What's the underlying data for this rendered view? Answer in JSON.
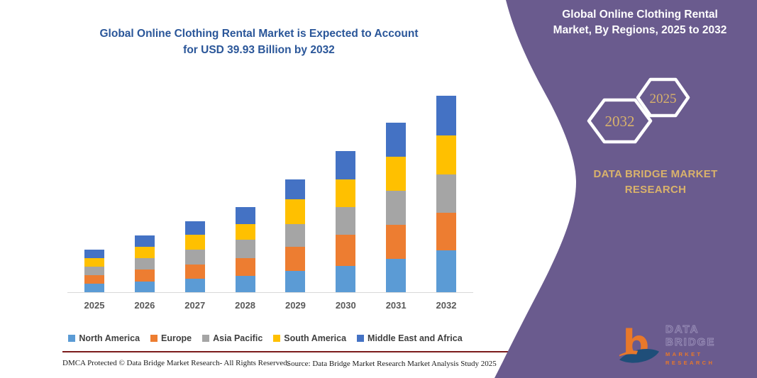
{
  "title": {
    "line1": "Global Online Clothing Rental Market is Expected to Account",
    "line2": "for USD 39.93 Billion by 2032"
  },
  "footer": {
    "dmca": "DMCA Protected © Data Bridge Market Research-  All Rights Reserved.",
    "source": "Source: Data Bridge Market Research  Market Analysis Study 2025"
  },
  "right_panel": {
    "heading_line1": "Global Online Clothing Rental",
    "heading_line2": "Market, By Regions, 2025 to 2032",
    "hexagon_back_label": "2032",
    "hexagon_front_label": "2025",
    "brand_line1": "DATA BRIDGE MARKET",
    "brand_line2": "RESEARCH",
    "logo_letter": "b",
    "logo_name": "DATA BRIDGE",
    "logo_sub": "MARKET RESEARCH"
  },
  "colors": {
    "purple": "#6A5B8E",
    "gold": "#D9B26B",
    "title_blue": "#2A5699",
    "axis_label_gray": "#595959",
    "red_rule": "#7B1B1B",
    "logo_orange": "#E8782A",
    "logo_blue": "#1F4E79"
  },
  "chart_data": {
    "type": "bar",
    "stacked": true,
    "title": "Global Online Clothing Rental Market is Expected to Account for USD 39.93 Billion by 2032",
    "unit": "USD Billion",
    "categories": [
      "2025",
      "2026",
      "2027",
      "2028",
      "2029",
      "2030",
      "2031",
      "2032"
    ],
    "series": [
      {
        "name": "North America",
        "color": "#5B9BD5",
        "values": [
          1.7,
          2.2,
          2.7,
          3.3,
          4.4,
          5.3,
          6.8,
          8.5
        ]
      },
      {
        "name": "Europe",
        "color": "#ED7D31",
        "values": [
          1.8,
          2.4,
          2.9,
          3.6,
          4.8,
          6.4,
          6.9,
          7.6
        ]
      },
      {
        "name": "Asia Pacific",
        "color": "#A5A5A5",
        "values": [
          1.7,
          2.3,
          3.1,
          3.7,
          4.6,
          5.6,
          6.9,
          7.9
        ]
      },
      {
        "name": "South America",
        "color": "#FFC000",
        "values": [
          1.7,
          2.3,
          3.0,
          3.2,
          5.1,
          5.6,
          6.9,
          7.9
        ]
      },
      {
        "name": "Middle East and Africa",
        "color": "#4472C4",
        "values": [
          1.7,
          2.3,
          2.7,
          3.45,
          4.0,
          5.7,
          6.9,
          8.03
        ]
      }
    ],
    "totals": [
      8.6,
      11.5,
      14.4,
      17.25,
      22.9,
      28.6,
      34.4,
      39.93
    ],
    "ylim": [
      0,
      40
    ],
    "gridlines": false,
    "legend_position": "bottom",
    "xlabel": "",
    "ylabel": ""
  }
}
